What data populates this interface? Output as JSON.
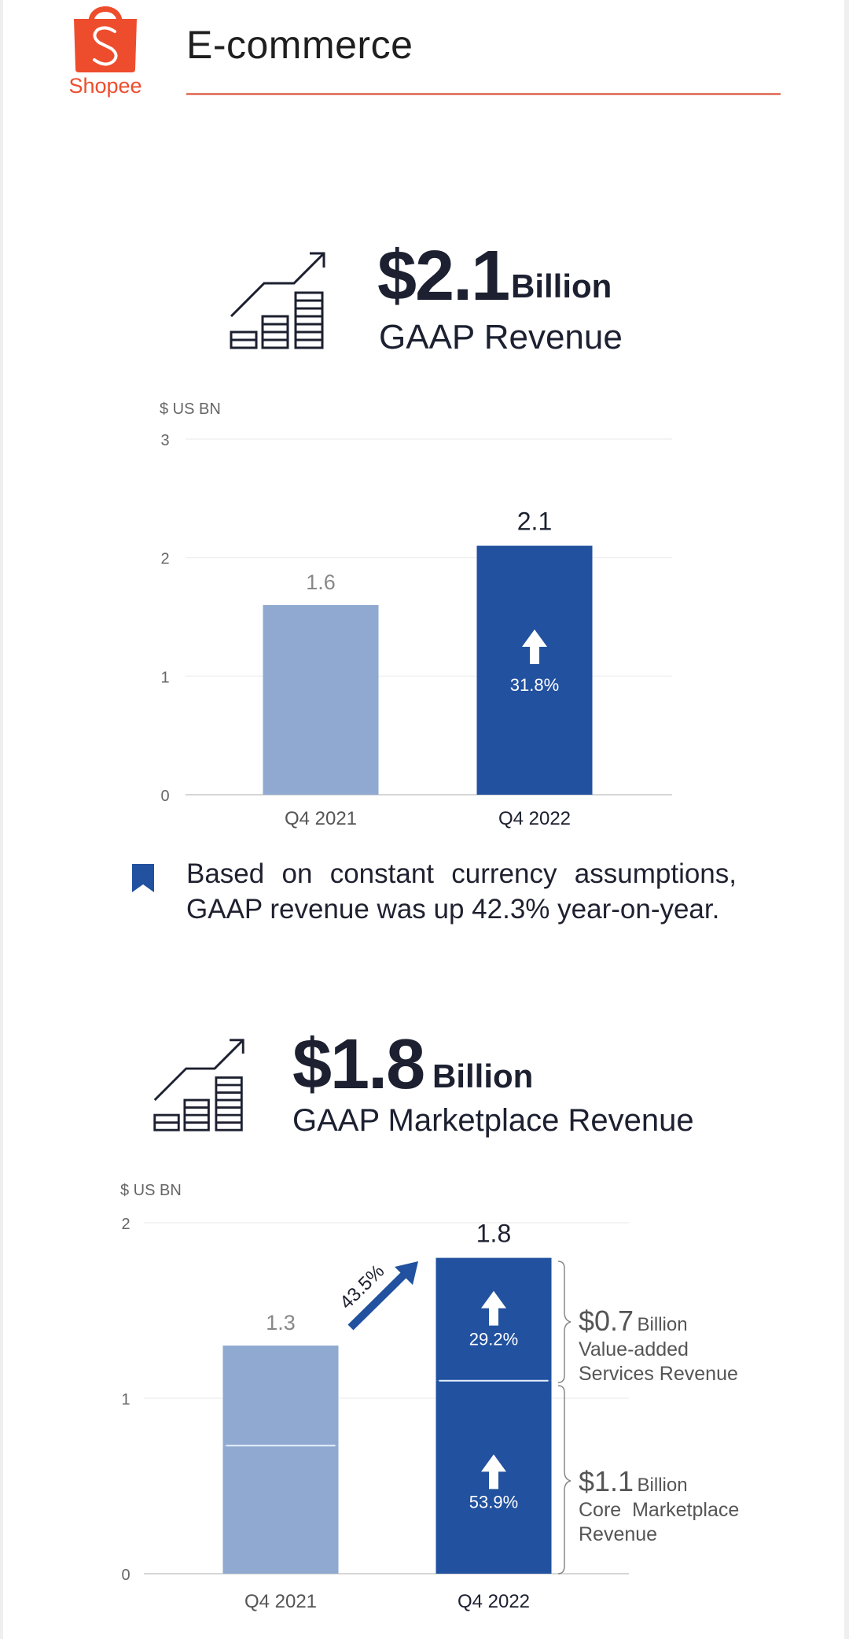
{
  "header": {
    "brand": "Shopee",
    "title": "E-commerce",
    "brand_color": "#ee4d2d"
  },
  "kpi_revenue": {
    "icon": "growth-chart-icon",
    "amount": "$2.1",
    "unit": "Billion",
    "label": "GAAP Revenue"
  },
  "note": {
    "icon": "bookmark-icon",
    "text": "Based on constant currency assumptions, GAAP revenue was up 42.3% year-on-year."
  },
  "kpi_marketplace": {
    "icon": "growth-chart-icon",
    "amount": "$1.8",
    "unit": "Billion",
    "label": "GAAP Marketplace Revenue"
  },
  "callouts": {
    "vas": {
      "amount": "$0.7",
      "unit": "Billion",
      "line1": "Value-added",
      "line2": "Services Revenue"
    },
    "core": {
      "amount": "$1.1",
      "unit": "Billion",
      "line1": "Core  Marketplace",
      "line2": "Revenue"
    }
  },
  "colors": {
    "bar_prior": "#8fa9d0",
    "bar_current": "#21519f",
    "text_dark": "#1c2030",
    "accent_rule": "#e57d6c"
  },
  "chart_data": [
    {
      "type": "bar",
      "title": "GAAP Revenue",
      "ylabel": "$ US BN",
      "xlabel": "",
      "categories": [
        "Q4 2021",
        "Q4 2022"
      ],
      "values": [
        1.6,
        2.1
      ],
      "data_labels": [
        "1.6",
        "2.1"
      ],
      "ylim": [
        0,
        3
      ],
      "yticks": [
        0,
        1,
        2,
        3
      ],
      "grid": true,
      "annotations": [
        {
          "category": "Q4 2022",
          "text": "31.8%",
          "icon": "up-arrow-icon"
        }
      ]
    },
    {
      "type": "bar",
      "stacked": true,
      "title": "GAAP Marketplace Revenue",
      "ylabel": "$ US BN",
      "xlabel": "",
      "categories": [
        "Q4 2021",
        "Q4 2022"
      ],
      "series": [
        {
          "name": "Core Marketplace Revenue",
          "values": [
            0.73,
            1.1
          ]
        },
        {
          "name": "Value-added Services Revenue",
          "values": [
            0.57,
            0.7
          ]
        }
      ],
      "totals": [
        1.3,
        1.8
      ],
      "data_labels": [
        "1.3",
        "1.8"
      ],
      "ylim": [
        0,
        2
      ],
      "yticks": [
        0,
        1,
        2
      ],
      "grid": true,
      "annotations": [
        {
          "text": "43.5%",
          "icon": "diagonal-up-arrow-icon",
          "between": [
            "Q4 2021",
            "Q4 2022"
          ]
        },
        {
          "category": "Q4 2022",
          "series": "Value-added Services Revenue",
          "text": "29.2%",
          "icon": "up-arrow-icon"
        },
        {
          "category": "Q4 2022",
          "series": "Core Marketplace Revenue",
          "text": "53.9%",
          "icon": "up-arrow-icon"
        }
      ]
    }
  ]
}
